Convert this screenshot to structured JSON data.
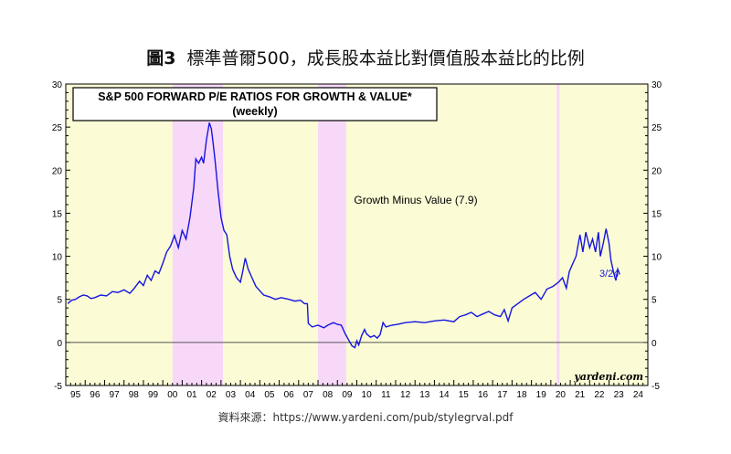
{
  "figure": {
    "title_prefix": "圖3",
    "title_text": "標準普爾500，成長股本益比對價值股本益比的比例",
    "source": "資料來源：https://www.yardeni.com/pub/stylegrval.pdf"
  },
  "chart_data": {
    "type": "line",
    "title": "S&P 500 FORWARD P/E RATIOS FOR GROWTH & VALUE*",
    "subtitle": "(weekly)",
    "annotation": "Growth Minus Value (7.9)",
    "end_label": "3/24",
    "watermark": "yardeni.com",
    "xlabel": "",
    "ylabel": "",
    "ylim": [
      -5,
      30
    ],
    "xlim": [
      1994.5,
      2024.5
    ],
    "yticks": [
      -5,
      0,
      5,
      10,
      15,
      20,
      25,
      30
    ],
    "yticklabels": [
      "-5",
      "0",
      "5",
      "10",
      "15",
      "20",
      "25",
      "30"
    ],
    "xticklabels": [
      "95",
      "96",
      "97",
      "98",
      "99",
      "00",
      "01",
      "02",
      "03",
      "04",
      "05",
      "06",
      "07",
      "08",
      "09",
      "10",
      "11",
      "12",
      "13",
      "14",
      "15",
      "16",
      "17",
      "18",
      "19",
      "20",
      "21",
      "22",
      "23",
      "24"
    ],
    "recessions": [
      {
        "start": 2000.0,
        "end": 2002.6
      },
      {
        "start": 2007.5,
        "end": 2008.95
      },
      {
        "start": 2019.8,
        "end": 2019.95
      }
    ],
    "colors": {
      "line": "#1515e0",
      "background": "#fbfbd6",
      "recession": "#f8d8f8",
      "zero_line": "#555555"
    },
    "series": [
      {
        "name": "Growth Minus Value",
        "points": [
          [
            1994.6,
            4.5
          ],
          [
            1994.8,
            4.9
          ],
          [
            1995.0,
            5.0
          ],
          [
            1995.2,
            5.3
          ],
          [
            1995.4,
            5.5
          ],
          [
            1995.6,
            5.4
          ],
          [
            1995.8,
            5.1
          ],
          [
            1996.0,
            5.2
          ],
          [
            1996.3,
            5.5
          ],
          [
            1996.6,
            5.4
          ],
          [
            1996.9,
            5.9
          ],
          [
            1997.2,
            5.8
          ],
          [
            1997.5,
            6.1
          ],
          [
            1997.8,
            5.7
          ],
          [
            1998.0,
            6.2
          ],
          [
            1998.3,
            7.1
          ],
          [
            1998.5,
            6.6
          ],
          [
            1998.7,
            7.8
          ],
          [
            1998.9,
            7.2
          ],
          [
            1999.1,
            8.3
          ],
          [
            1999.3,
            8.0
          ],
          [
            1999.5,
            9.2
          ],
          [
            1999.7,
            10.5
          ],
          [
            1999.9,
            11.2
          ],
          [
            2000.1,
            12.4
          ],
          [
            2000.3,
            11.0
          ],
          [
            2000.5,
            13.0
          ],
          [
            2000.7,
            12.0
          ],
          [
            2000.9,
            14.5
          ],
          [
            2001.1,
            18.0
          ],
          [
            2001.2,
            21.3
          ],
          [
            2001.35,
            20.8
          ],
          [
            2001.5,
            21.5
          ],
          [
            2001.6,
            20.8
          ],
          [
            2001.75,
            23.5
          ],
          [
            2001.9,
            25.5
          ],
          [
            2002.0,
            24.8
          ],
          [
            2002.1,
            23.0
          ],
          [
            2002.2,
            21.0
          ],
          [
            2002.35,
            17.5
          ],
          [
            2002.5,
            14.5
          ],
          [
            2002.65,
            13.0
          ],
          [
            2002.8,
            12.5
          ],
          [
            2002.95,
            10.0
          ],
          [
            2003.1,
            8.5
          ],
          [
            2003.3,
            7.5
          ],
          [
            2003.5,
            7.0
          ],
          [
            2003.6,
            8.0
          ],
          [
            2003.75,
            9.8
          ],
          [
            2003.9,
            8.5
          ],
          [
            2004.1,
            7.5
          ],
          [
            2004.3,
            6.5
          ],
          [
            2004.5,
            6.0
          ],
          [
            2004.7,
            5.5
          ],
          [
            2005.0,
            5.3
          ],
          [
            2005.3,
            5.0
          ],
          [
            2005.6,
            5.2
          ],
          [
            2006.0,
            5.0
          ],
          [
            2006.3,
            4.8
          ],
          [
            2006.6,
            4.9
          ],
          [
            2006.8,
            4.5
          ],
          [
            2006.95,
            4.5
          ],
          [
            2007.0,
            2.2
          ],
          [
            2007.2,
            1.8
          ],
          [
            2007.5,
            2.0
          ],
          [
            2007.8,
            1.7
          ],
          [
            2008.0,
            2.0
          ],
          [
            2008.3,
            2.3
          ],
          [
            2008.5,
            2.1
          ],
          [
            2008.7,
            2.0
          ],
          [
            2008.9,
            1.0
          ],
          [
            2009.1,
            0.2
          ],
          [
            2009.25,
            -0.4
          ],
          [
            2009.4,
            -0.6
          ],
          [
            2009.5,
            0.2
          ],
          [
            2009.6,
            -0.3
          ],
          [
            2009.75,
            0.8
          ],
          [
            2009.9,
            1.5
          ],
          [
            2010.0,
            1.0
          ],
          [
            2010.2,
            0.6
          ],
          [
            2010.4,
            0.8
          ],
          [
            2010.55,
            0.5
          ],
          [
            2010.7,
            0.9
          ],
          [
            2010.85,
            2.3
          ],
          [
            2011.0,
            1.8
          ],
          [
            2011.3,
            2.0
          ],
          [
            2011.6,
            2.1
          ],
          [
            2012.0,
            2.3
          ],
          [
            2012.5,
            2.4
          ],
          [
            2013.0,
            2.3
          ],
          [
            2013.5,
            2.5
          ],
          [
            2014.0,
            2.6
          ],
          [
            2014.5,
            2.4
          ],
          [
            2014.8,
            3.0
          ],
          [
            2015.1,
            3.2
          ],
          [
            2015.4,
            3.5
          ],
          [
            2015.7,
            3.0
          ],
          [
            2016.0,
            3.3
          ],
          [
            2016.3,
            3.6
          ],
          [
            2016.6,
            3.2
          ],
          [
            2016.9,
            3.0
          ],
          [
            2017.1,
            3.8
          ],
          [
            2017.3,
            2.5
          ],
          [
            2017.5,
            4.0
          ],
          [
            2017.8,
            4.5
          ],
          [
            2018.1,
            5.0
          ],
          [
            2018.4,
            5.4
          ],
          [
            2018.7,
            5.8
          ],
          [
            2019.0,
            5.0
          ],
          [
            2019.3,
            6.2
          ],
          [
            2019.6,
            6.5
          ],
          [
            2019.9,
            7.0
          ],
          [
            2020.1,
            7.5
          ],
          [
            2020.3,
            6.3
          ],
          [
            2020.45,
            8.2
          ],
          [
            2020.6,
            9.0
          ],
          [
            2020.8,
            10.0
          ],
          [
            2021.0,
            12.5
          ],
          [
            2021.15,
            10.5
          ],
          [
            2021.3,
            12.8
          ],
          [
            2021.5,
            11.0
          ],
          [
            2021.65,
            12.0
          ],
          [
            2021.8,
            10.5
          ],
          [
            2021.95,
            12.8
          ],
          [
            2022.05,
            10.0
          ],
          [
            2022.2,
            11.5
          ],
          [
            2022.35,
            13.2
          ],
          [
            2022.5,
            11.5
          ],
          [
            2022.6,
            9.5
          ],
          [
            2022.75,
            8.0
          ],
          [
            2022.85,
            7.2
          ],
          [
            2022.95,
            8.5
          ],
          [
            2023.05,
            7.9
          ]
        ]
      }
    ]
  }
}
